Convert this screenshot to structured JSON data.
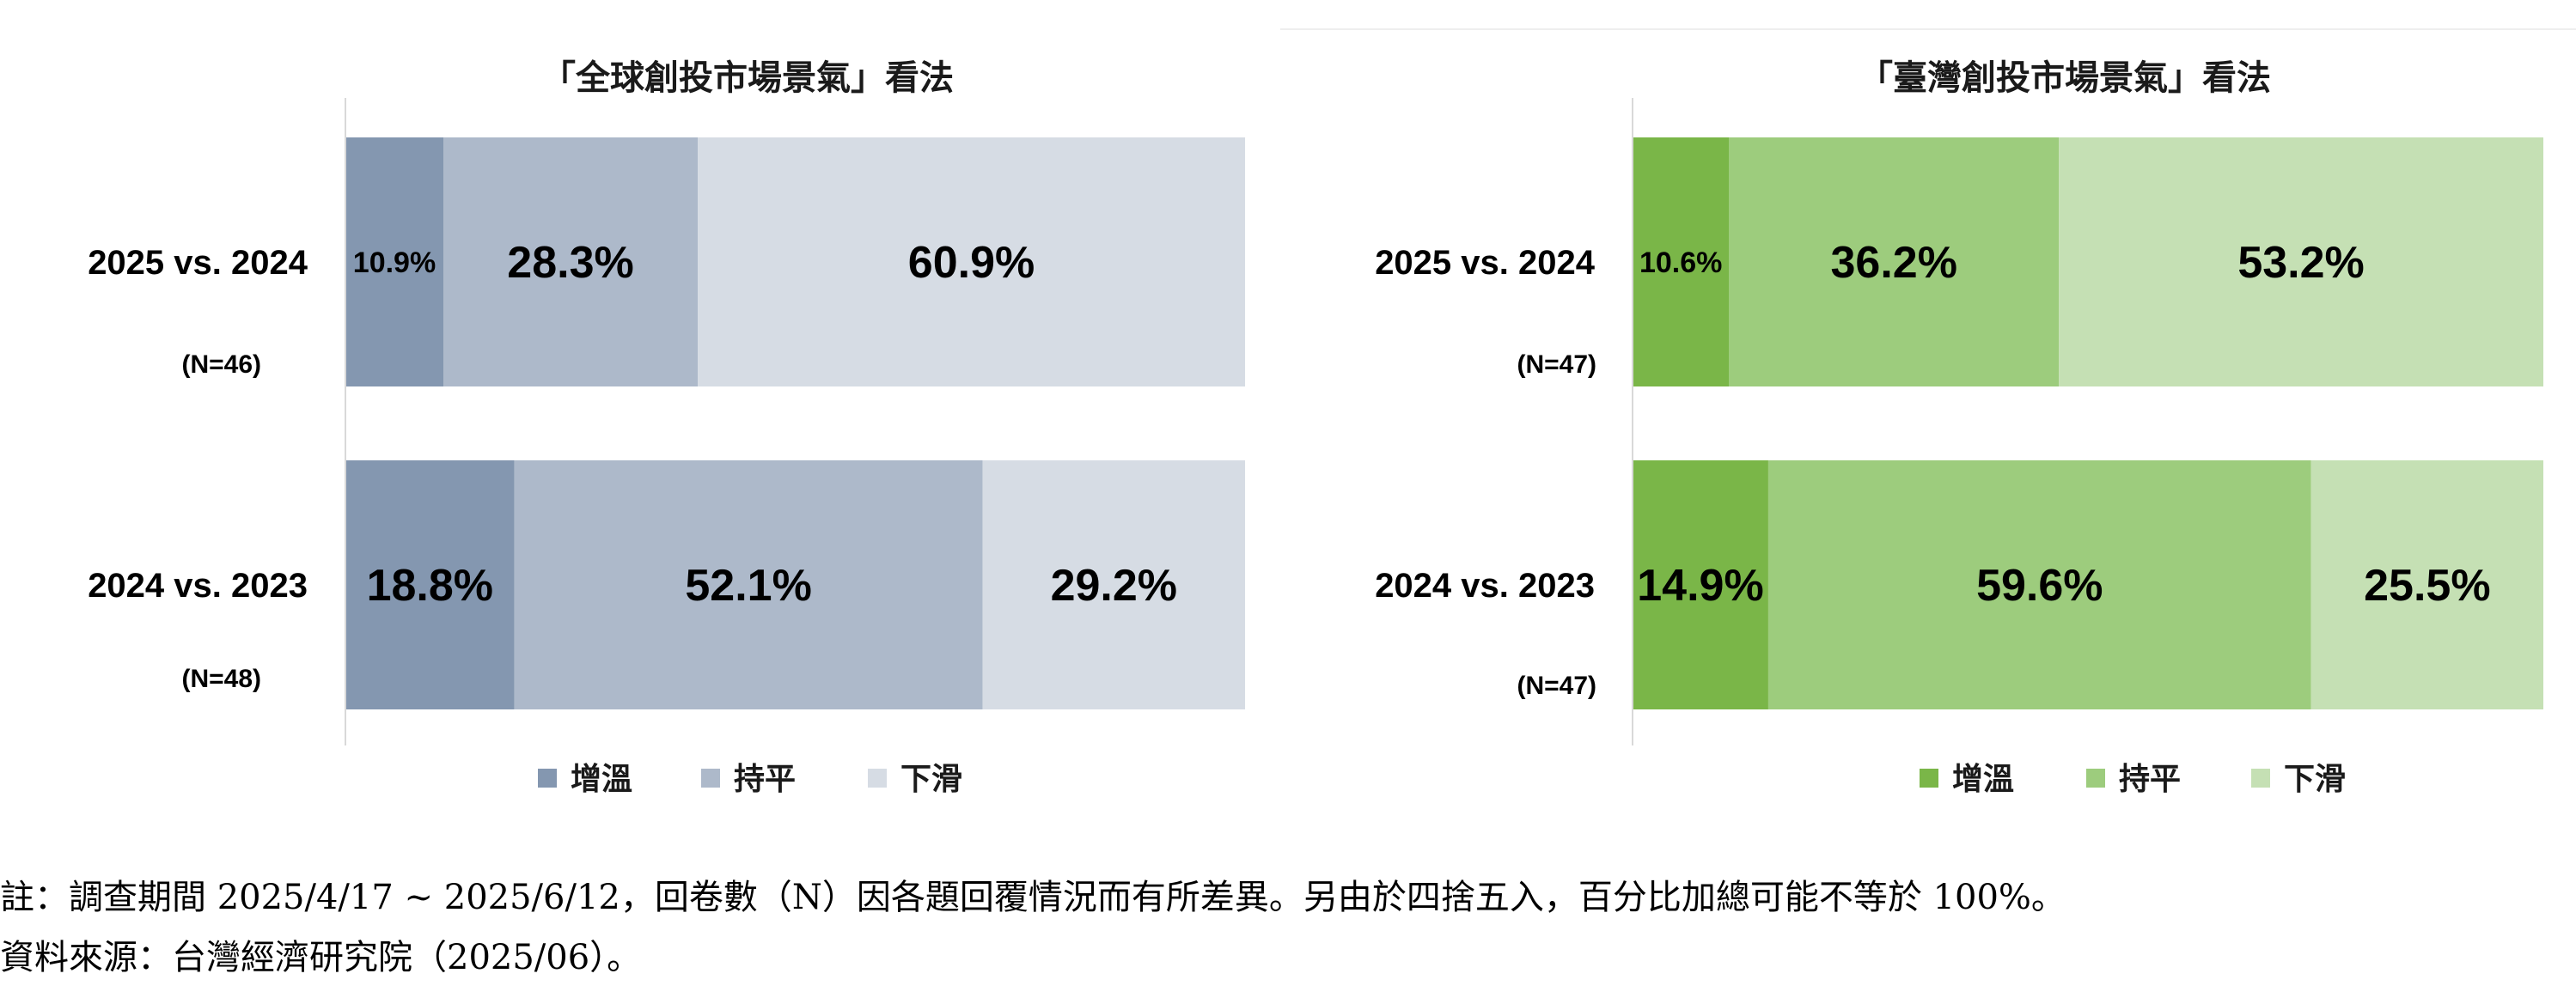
{
  "chart_data": [
    {
      "type": "bar",
      "orientation": "horizontal-stacked",
      "title": "「全球創投市場景氣」看法",
      "categories": [
        "2025 vs. 2024",
        "2024 vs. 2023"
      ],
      "sample_sizes": [
        "(N=46)",
        "(N=48)"
      ],
      "series": [
        {
          "name": "增溫",
          "values": [
            10.9,
            18.8
          ],
          "labels": [
            "10.9%",
            "18.8%"
          ],
          "color": "#8497b0"
        },
        {
          "name": "持平",
          "values": [
            28.3,
            52.1
          ],
          "labels": [
            "28.3%",
            "52.1%"
          ],
          "color": "#adb9ca"
        },
        {
          "name": "下滑",
          "values": [
            60.9,
            29.2
          ],
          "labels": [
            "60.9%",
            "29.2%"
          ],
          "color": "#d6dce4"
        }
      ],
      "xlim": [
        0,
        100
      ],
      "grid": false,
      "legend": "bottom"
    },
    {
      "type": "bar",
      "orientation": "horizontal-stacked",
      "title": "「臺灣創投市場景氣」看法",
      "categories": [
        "2025 vs. 2024",
        "2024 vs. 2023"
      ],
      "sample_sizes": [
        "(N=47)",
        "(N=47)"
      ],
      "series": [
        {
          "name": "增溫",
          "values": [
            10.6,
            14.9
          ],
          "labels": [
            "10.6%",
            "14.9%"
          ],
          "color": "#7ab648"
        },
        {
          "name": "持平",
          "values": [
            36.2,
            59.6
          ],
          "labels": [
            "36.2%",
            "59.6%"
          ],
          "color": "#9dcc7d"
        },
        {
          "name": "下滑",
          "values": [
            53.2,
            25.5
          ],
          "labels": [
            "53.2%",
            "25.5%"
          ],
          "color": "#c5e0b4"
        }
      ],
      "xlim": [
        0,
        100
      ],
      "grid": false,
      "legend": "bottom"
    }
  ],
  "notes": {
    "note": "註：調查期間 2025/4/17 ~ 2025/6/12，回卷數（N）因各題回覆情況而有所差異。另由於四捨五入，百分比加總可能不等於 100%。",
    "source": "資料來源：台灣經濟研究院（2025/06）。"
  }
}
